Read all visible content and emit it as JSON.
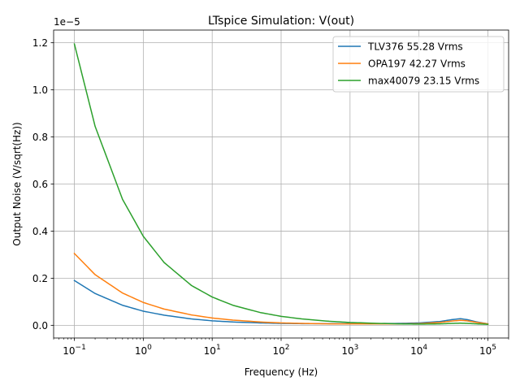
{
  "chart_data": {
    "type": "line",
    "title": "LTspice Simulation: V(out)",
    "xlabel": "Frequency (Hz)",
    "ylabel": "Output Noise (V/sqrt(Hz))",
    "y_offset_text": "1e−5",
    "x_scale": "log",
    "xlim": [
      0.05,
      200000
    ],
    "ylim": [
      -0.054,
      1.254
    ],
    "grid": true,
    "legend_position": "upper right",
    "x_ticks": [
      {
        "value": 0.1,
        "base": "10",
        "exp": "−1"
      },
      {
        "value": 1,
        "base": "10",
        "exp": "0"
      },
      {
        "value": 10,
        "base": "10",
        "exp": "1"
      },
      {
        "value": 100,
        "base": "10",
        "exp": "2"
      },
      {
        "value": 1000,
        "base": "10",
        "exp": "3"
      },
      {
        "value": 10000,
        "base": "10",
        "exp": "4"
      },
      {
        "value": 100000,
        "base": "10",
        "exp": "5"
      }
    ],
    "y_ticks": [
      {
        "value": 0.0,
        "label": "0.0"
      },
      {
        "value": 0.2,
        "label": "0.2"
      },
      {
        "value": 0.4,
        "label": "0.4"
      },
      {
        "value": 0.6,
        "label": "0.6"
      },
      {
        "value": 0.8,
        "label": "0.8"
      },
      {
        "value": 1.0,
        "label": "1.0"
      },
      {
        "value": 1.2,
        "label": "1.2"
      }
    ],
    "series": [
      {
        "name": "TLV376 55.28 Vrms",
        "color": "#1f77b4",
        "x": [
          0.1,
          0.2,
          0.5,
          1,
          2,
          5,
          10,
          20,
          50,
          100,
          200,
          500,
          1000,
          2000,
          5000,
          10000,
          20000,
          30000,
          40000,
          50000,
          70000,
          100000
        ],
        "y": [
          0.19,
          0.135,
          0.085,
          0.06,
          0.043,
          0.027,
          0.019,
          0.014,
          0.01,
          0.008,
          0.007,
          0.007,
          0.007,
          0.007,
          0.008,
          0.01,
          0.016,
          0.024,
          0.028,
          0.024,
          0.014,
          0.006
        ]
      },
      {
        "name": "OPA197 42.27 Vrms",
        "color": "#ff7f0e",
        "x": [
          0.1,
          0.2,
          0.5,
          1,
          2,
          5,
          10,
          20,
          50,
          100,
          200,
          500,
          1000,
          2000,
          5000,
          10000,
          20000,
          30000,
          40000,
          50000,
          70000,
          100000
        ],
        "y": [
          0.305,
          0.215,
          0.137,
          0.097,
          0.069,
          0.044,
          0.031,
          0.022,
          0.014,
          0.01,
          0.008,
          0.006,
          0.006,
          0.006,
          0.006,
          0.007,
          0.012,
          0.018,
          0.021,
          0.019,
          0.012,
          0.006
        ]
      },
      {
        "name": "max40079 23.15 Vrms",
        "color": "#2ca02c",
        "x": [
          0.1,
          0.2,
          0.5,
          1,
          2,
          5,
          10,
          20,
          50,
          100,
          200,
          500,
          1000,
          2000,
          5000,
          10000,
          20000,
          30000,
          40000,
          50000,
          70000,
          100000
        ],
        "y": [
          1.195,
          0.845,
          0.535,
          0.378,
          0.267,
          0.169,
          0.12,
          0.085,
          0.054,
          0.038,
          0.027,
          0.017,
          0.012,
          0.009,
          0.006,
          0.005,
          0.006,
          0.008,
          0.009,
          0.008,
          0.006,
          0.004
        ]
      }
    ]
  }
}
